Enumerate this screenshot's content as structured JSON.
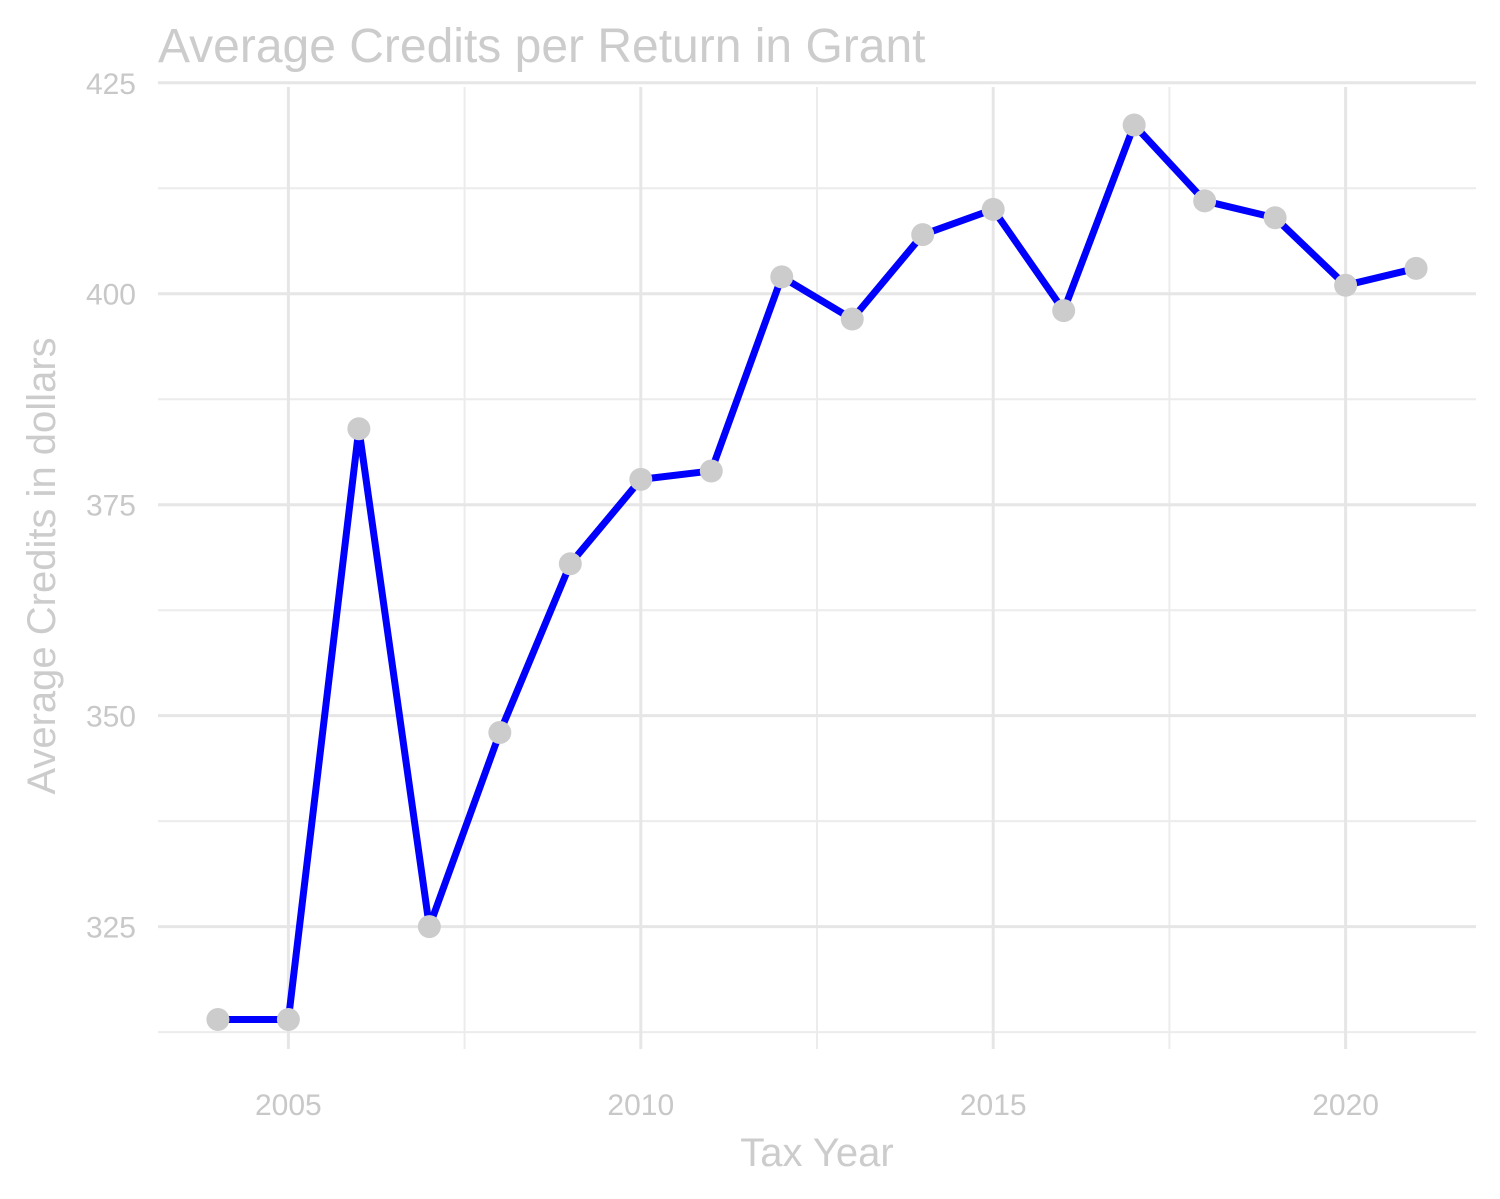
{
  "chart_data": {
    "type": "line",
    "title": "Average Credits per Return in Grant",
    "xlabel": "Tax Year",
    "ylabel": "Average Credits in dollars",
    "x": [
      2004,
      2005,
      2006,
      2007,
      2008,
      2009,
      2010,
      2011,
      2012,
      2013,
      2014,
      2015,
      2016,
      2017,
      2018,
      2019,
      2020,
      2021
    ],
    "series": [
      {
        "values": [
          314,
          314,
          384,
          325,
          348,
          368,
          378,
          379,
          402,
          397,
          407,
          410,
          398,
          420,
          411,
          409,
          401,
          403
        ]
      }
    ],
    "xlim": [
      2003.15,
      2021.85
    ],
    "ylim": [
      310.5,
      424.5
    ],
    "x_ticks": [
      "2005",
      "2010",
      "2015",
      "2020"
    ],
    "y_ticks": [
      "325",
      "350",
      "375",
      "400",
      "425"
    ],
    "grid": true,
    "legend": "none",
    "colors": {
      "line": "#0000ff",
      "points": "#cccccc",
      "text": "#cccccc",
      "grid": "#e6e6e6"
    }
  }
}
